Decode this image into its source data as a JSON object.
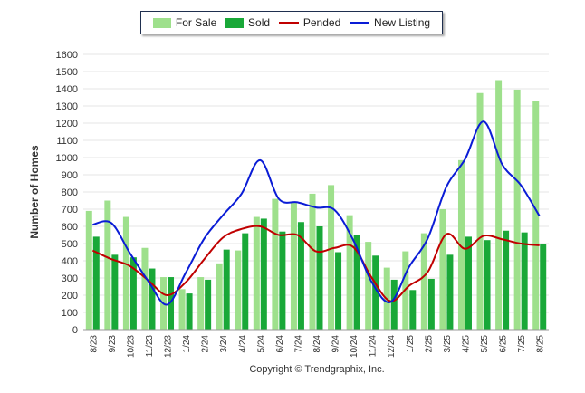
{
  "legend": {
    "for_sale": "For Sale",
    "sold": "Sold",
    "pended": "Pended",
    "new_listing": "New Listing"
  },
  "footer": {
    "copyright": "Copyright © Trendgraphix, Inc."
  },
  "colors": {
    "for_sale": "#9ee08c",
    "sold": "#19a838",
    "pended": "#c00000",
    "new_listing": "#0a1cd6",
    "grid": "#e4e4e4"
  },
  "chart_data": {
    "type": "bar",
    "title": "",
    "xlabel": "",
    "ylabel": "Number of Homes",
    "ylim": [
      0,
      1600
    ],
    "ytick_step": 100,
    "grid": true,
    "legend_position": "top-center",
    "categories": [
      "8/23",
      "9/23",
      "10/23",
      "11/23",
      "12/23",
      "1/24",
      "2/24",
      "3/24",
      "4/24",
      "5/24",
      "6/24",
      "7/24",
      "8/24",
      "9/24",
      "10/24",
      "11/24",
      "12/24",
      "1/25",
      "2/25",
      "3/25",
      "4/25",
      "5/25",
      "6/25",
      "7/25",
      "8/25"
    ],
    "series": [
      {
        "name": "For Sale",
        "kind": "bar",
        "values": [
          690,
          750,
          655,
          475,
          305,
          235,
          305,
          385,
          460,
          655,
          760,
          745,
          790,
          840,
          665,
          510,
          360,
          455,
          560,
          700,
          985,
          1375,
          1450,
          1395,
          1330
        ]
      },
      {
        "name": "Sold",
        "kind": "bar",
        "values": [
          540,
          435,
          420,
          355,
          305,
          210,
          290,
          465,
          560,
          645,
          570,
          625,
          600,
          450,
          550,
          430,
          290,
          230,
          295,
          435,
          540,
          520,
          575,
          565,
          495
        ]
      },
      {
        "name": "Pended",
        "kind": "line",
        "values": [
          460,
          410,
          370,
          285,
          200,
          275,
          410,
          535,
          585,
          600,
          550,
          550,
          455,
          475,
          480,
          300,
          165,
          255,
          335,
          555,
          470,
          545,
          525,
          500,
          490
        ]
      },
      {
        "name": "New Listing",
        "kind": "line",
        "values": [
          610,
          620,
          445,
          280,
          145,
          330,
          530,
          665,
          790,
          985,
          760,
          740,
          710,
          695,
          520,
          275,
          160,
          365,
          530,
          830,
          990,
          1210,
          960,
          840,
          660
        ]
      }
    ]
  }
}
